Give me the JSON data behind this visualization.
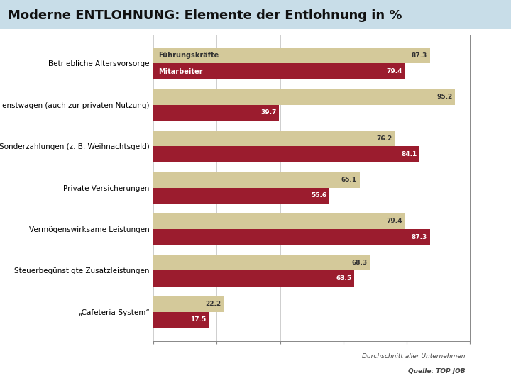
{
  "title": "Moderne ENTLOHNUNG: Elemente der Entlohnung in %",
  "title_bg": "#c8dde8",
  "bg_color": "#ffffff",
  "chart_bg": "#ffffff",
  "categories": [
    "Betriebliche Altersvorsorge",
    "Dienstwagen (auch zur privaten Nutzung)",
    "Sonderzahlungen (z. B. Weihnachtsgeld)",
    "Private Versicherungen",
    "Vermögenswirksame Leistungen",
    "Steuerbegünstigte Zusatzleistungen",
    "„Cafeteria-System“"
  ],
  "series1_label": "Führungskräfte",
  "series2_label": "Mitarbeiter",
  "series1_values": [
    87.3,
    95.2,
    76.2,
    65.1,
    79.4,
    68.3,
    22.2
  ],
  "series2_values": [
    79.4,
    39.7,
    84.1,
    55.6,
    87.3,
    63.5,
    17.5
  ],
  "color1": "#d4c99a",
  "color2": "#9b1c2e",
  "val_color1": "#333333",
  "val_color2": "#ffffff",
  "legend_color1": "#333333",
  "legend_color2": "#ffffff",
  "xlim": [
    0,
    100
  ],
  "footnote1": "Durchschnitt aller Unternehmen",
  "footnote2": "Quelle: TOP JOB",
  "bar_height": 0.38,
  "font_size_title": 13,
  "font_size_cat": 7.5,
  "font_size_val": 6.5,
  "font_size_legend": 7,
  "font_size_footnote": 6.5
}
